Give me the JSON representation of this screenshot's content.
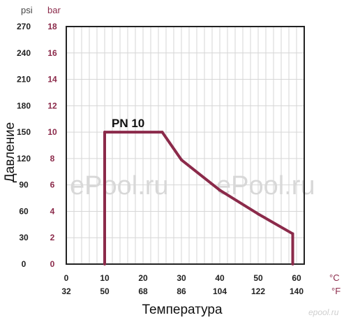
{
  "chart_data": {
    "type": "line",
    "xlabel": "Температура",
    "ylabel": "Давление",
    "x_units": [
      "°C",
      "°F"
    ],
    "y_units": [
      "psi",
      "bar"
    ],
    "x_ticks_c": [
      0,
      10,
      20,
      30,
      40,
      50,
      60
    ],
    "x_ticks_f": [
      32,
      50,
      68,
      86,
      104,
      122,
      140
    ],
    "y_ticks_bar": [
      0,
      2,
      4,
      6,
      8,
      10,
      12,
      14,
      16,
      18
    ],
    "y_ticks_psi": [
      0,
      30,
      60,
      90,
      120,
      150,
      180,
      210,
      240,
      270
    ],
    "xlim": [
      0,
      62
    ],
    "ylim": [
      0,
      18
    ],
    "grid": true,
    "series": [
      {
        "name": "PN 10",
        "color": "#8b2a4a",
        "x": [
          10,
          10,
          25,
          30,
          40,
          50,
          59,
          59
        ],
        "y": [
          0,
          10,
          10,
          7.9,
          5.6,
          3.8,
          2.3,
          0
        ]
      }
    ]
  },
  "watermarks": [
    "ePool.ru",
    "ePool.ru",
    "epool.ru"
  ]
}
